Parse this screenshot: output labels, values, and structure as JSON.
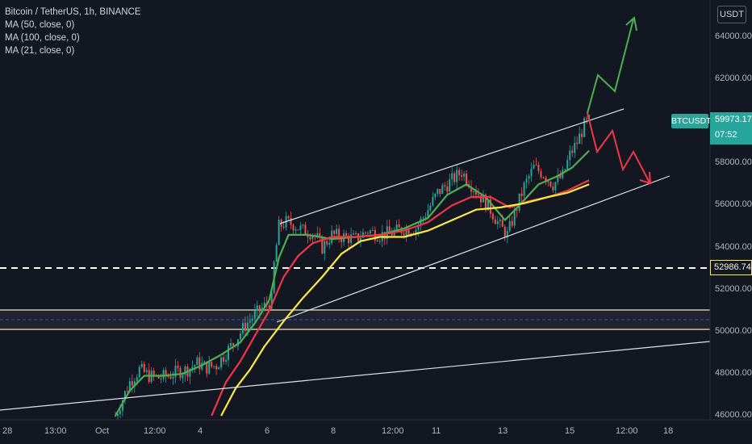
{
  "legend": {
    "title": "Bitcoin / TetherUS, 1h, BINANCE",
    "ma1": "MA (50, close, 0)",
    "ma2": "MA (100, close, 0)",
    "ma3": "MA (21, close, 0)"
  },
  "currency": "USDT",
  "last_price": {
    "symbol": "BTCUSDT",
    "value": "59973.17",
    "countdown": "07:52"
  },
  "level_label": "52986.74",
  "colors": {
    "background": "#131722",
    "up_candle": "#26a69a",
    "down_candle": "#ef5350",
    "ma_green": "#4caf50",
    "ma_red": "#f23645",
    "ma_yellow": "#ffeb3b",
    "trendline": "#e0e3eb",
    "level": "#ffffff",
    "bullish_arrow": "#4caf50",
    "bearish_arrow": "#f23645"
  },
  "chart_data": {
    "type": "candlestick",
    "symbol": "Bitcoin / TetherUS",
    "interval": "1h",
    "exchange": "BINANCE",
    "y_axis": {
      "ticks": [
        46000,
        48000,
        50000,
        52000,
        54000,
        56000,
        58000,
        60000,
        62000,
        64000
      ],
      "tick_labels": [
        "46000.00",
        "48000.00",
        "50000.00",
        "52000.00",
        "54000.00",
        "56000.00",
        "58000.00",
        "60000.00",
        "62000.00",
        "64000.00"
      ],
      "ylim": [
        45900,
        65400
      ]
    },
    "x_axis": {
      "tick_labels": [
        "28",
        "13:00",
        "Oct",
        "12:00",
        "4",
        "6",
        "8",
        "12:00",
        "11",
        "13",
        "15",
        "12:00",
        "18"
      ]
    },
    "close_path": [
      [
        0,
        46000
      ],
      [
        6,
        47600
      ],
      [
        10,
        48200
      ],
      [
        14,
        47900
      ],
      [
        18,
        47800
      ],
      [
        22,
        47900
      ],
      [
        26,
        48100
      ],
      [
        30,
        48200
      ],
      [
        34,
        48500
      ],
      [
        38,
        48300
      ],
      [
        42,
        48400
      ],
      [
        46,
        49000
      ],
      [
        50,
        49600
      ],
      [
        54,
        50300
      ],
      [
        58,
        50800
      ],
      [
        62,
        51200
      ],
      [
        65,
        51500
      ],
      [
        66,
        53200
      ],
      [
        68,
        55000
      ],
      [
        71,
        55200
      ],
      [
        74,
        55100
      ],
      [
        78,
        54800
      ],
      [
        82,
        54700
      ],
      [
        84,
        54400
      ],
      [
        86,
        54000
      ],
      [
        90,
        54600
      ],
      [
        95,
        54500
      ],
      [
        100,
        54400
      ],
      [
        105,
        54800
      ],
      [
        110,
        54600
      ],
      [
        115,
        54700
      ],
      [
        120,
        54900
      ],
      [
        125,
        54900
      ],
      [
        130,
        55800
      ],
      [
        134,
        56600
      ],
      [
        140,
        57200
      ],
      [
        144,
        57600
      ],
      [
        148,
        57000
      ],
      [
        152,
        56400
      ],
      [
        156,
        55800
      ],
      [
        160,
        55000
      ],
      [
        163,
        54600
      ],
      [
        166,
        55600
      ],
      [
        170,
        56900
      ],
      [
        174,
        57800
      ],
      [
        178,
        57500
      ],
      [
        182,
        57000
      ],
      [
        186,
        57400
      ],
      [
        189,
        58400
      ],
      [
        192,
        59000
      ],
      [
        195,
        59800
      ],
      [
        197,
        60000
      ]
    ],
    "moving_averages": [
      {
        "name": "MA (21, close, 0)",
        "color": "#4caf50",
        "values": [
          [
            0,
            46000
          ],
          [
            6,
            47200
          ],
          [
            12,
            47900
          ],
          [
            20,
            47900
          ],
          [
            28,
            48000
          ],
          [
            36,
            48400
          ],
          [
            44,
            48900
          ],
          [
            52,
            49500
          ],
          [
            58,
            50400
          ],
          [
            64,
            51500
          ],
          [
            68,
            53500
          ],
          [
            72,
            54600
          ],
          [
            80,
            54600
          ],
          [
            90,
            54400
          ],
          [
            100,
            54500
          ],
          [
            110,
            54600
          ],
          [
            120,
            54900
          ],
          [
            130,
            55400
          ],
          [
            138,
            56500
          ],
          [
            146,
            57000
          ],
          [
            154,
            56400
          ],
          [
            162,
            55300
          ],
          [
            168,
            56000
          ],
          [
            176,
            57000
          ],
          [
            184,
            57400
          ],
          [
            190,
            57800
          ],
          [
            197,
            58600
          ]
        ]
      },
      {
        "name": "MA (50, close, 0)",
        "color": "#f23645",
        "values": [
          [
            40,
            46000
          ],
          [
            46,
            47600
          ],
          [
            52,
            48600
          ],
          [
            58,
            49800
          ],
          [
            64,
            51000
          ],
          [
            70,
            52600
          ],
          [
            76,
            53600
          ],
          [
            82,
            54200
          ],
          [
            90,
            54500
          ],
          [
            100,
            54500
          ],
          [
            110,
            54600
          ],
          [
            120,
            54800
          ],
          [
            130,
            55200
          ],
          [
            140,
            56000
          ],
          [
            148,
            56400
          ],
          [
            156,
            56400
          ],
          [
            164,
            55900
          ],
          [
            172,
            56200
          ],
          [
            180,
            56400
          ],
          [
            188,
            56700
          ],
          [
            197,
            57200
          ]
        ]
      },
      {
        "name": "MA (100, close, 0)",
        "color": "#ffeb3b",
        "values": [
          [
            44,
            46000
          ],
          [
            50,
            47300
          ],
          [
            56,
            48200
          ],
          [
            62,
            49300
          ],
          [
            70,
            50500
          ],
          [
            78,
            51600
          ],
          [
            86,
            52600
          ],
          [
            94,
            53700
          ],
          [
            102,
            54300
          ],
          [
            110,
            54500
          ],
          [
            120,
            54500
          ],
          [
            130,
            54800
          ],
          [
            140,
            55300
          ],
          [
            150,
            55800
          ],
          [
            160,
            55900
          ],
          [
            170,
            56100
          ],
          [
            180,
            56400
          ],
          [
            188,
            56600
          ],
          [
            197,
            57000
          ]
        ]
      }
    ],
    "horizontal_level": 52986.74,
    "resistance_zone": [
      50200,
      50900
    ]
  }
}
